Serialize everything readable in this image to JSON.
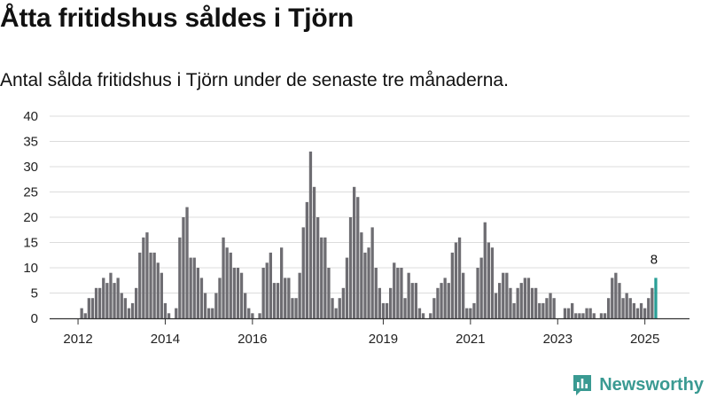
{
  "title": "Åtta fritidshus såldes i Tjörn",
  "subtitle": "Antal sålda fritidshus i Tjörn under de senaste tre månaderna.",
  "brand": {
    "name": "Newsworthy",
    "icon": "newsworthy-logo-icon",
    "color": "#3a9a92"
  },
  "colors": {
    "bar": "#6e6d72",
    "highlight": "#2a9f97",
    "grid": "#dcdcdc",
    "axis": "#333333"
  },
  "chart_data": {
    "type": "bar",
    "title": "Åtta fritidshus såldes i Tjörn",
    "subtitle": "Antal sålda fritidshus i Tjörn under de senaste tre månaderna.",
    "xlabel": "",
    "ylabel": "",
    "ylim": [
      0,
      40
    ],
    "yticks": [
      0,
      5,
      10,
      15,
      20,
      25,
      30,
      35,
      40
    ],
    "grid": true,
    "legend": "none",
    "period": "rolling three-month total, monthly",
    "first_month": "2012-02",
    "x_ticks": [
      "2012",
      "2014",
      "2016",
      "2019",
      "2021",
      "2023",
      "2025"
    ],
    "values": [
      2,
      1,
      4,
      4,
      6,
      6,
      8,
      7,
      9,
      7,
      8,
      5,
      4,
      2,
      3,
      6,
      13,
      16,
      17,
      13,
      13,
      11,
      9,
      3,
      1,
      0,
      2,
      16,
      20,
      22,
      12,
      12,
      10,
      8,
      5,
      2,
      2,
      5,
      8,
      16,
      14,
      13,
      10,
      10,
      9,
      5,
      2,
      1,
      0,
      1,
      10,
      11,
      13,
      7,
      7,
      14,
      8,
      8,
      4,
      4,
      9,
      18,
      23,
      33,
      26,
      20,
      16,
      16,
      10,
      4,
      2,
      4,
      6,
      12,
      20,
      26,
      24,
      17,
      13,
      14,
      18,
      10,
      6,
      3,
      3,
      6,
      11,
      10,
      10,
      4,
      9,
      7,
      7,
      2,
      1,
      0,
      1,
      4,
      6,
      7,
      8,
      7,
      13,
      15,
      16,
      9,
      2,
      2,
      3,
      10,
      12,
      19,
      15,
      14,
      5,
      7,
      9,
      9,
      6,
      3,
      6,
      7,
      8,
      8,
      6,
      6,
      3,
      3,
      4,
      5,
      4,
      0,
      0,
      2,
      2,
      3,
      1,
      1,
      1,
      2,
      2,
      1,
      0,
      1,
      1,
      4,
      8,
      9,
      7,
      4,
      5,
      4,
      3,
      2,
      3,
      2,
      4,
      6,
      8
    ],
    "highlight_value": 8,
    "highlight_label": "8"
  }
}
